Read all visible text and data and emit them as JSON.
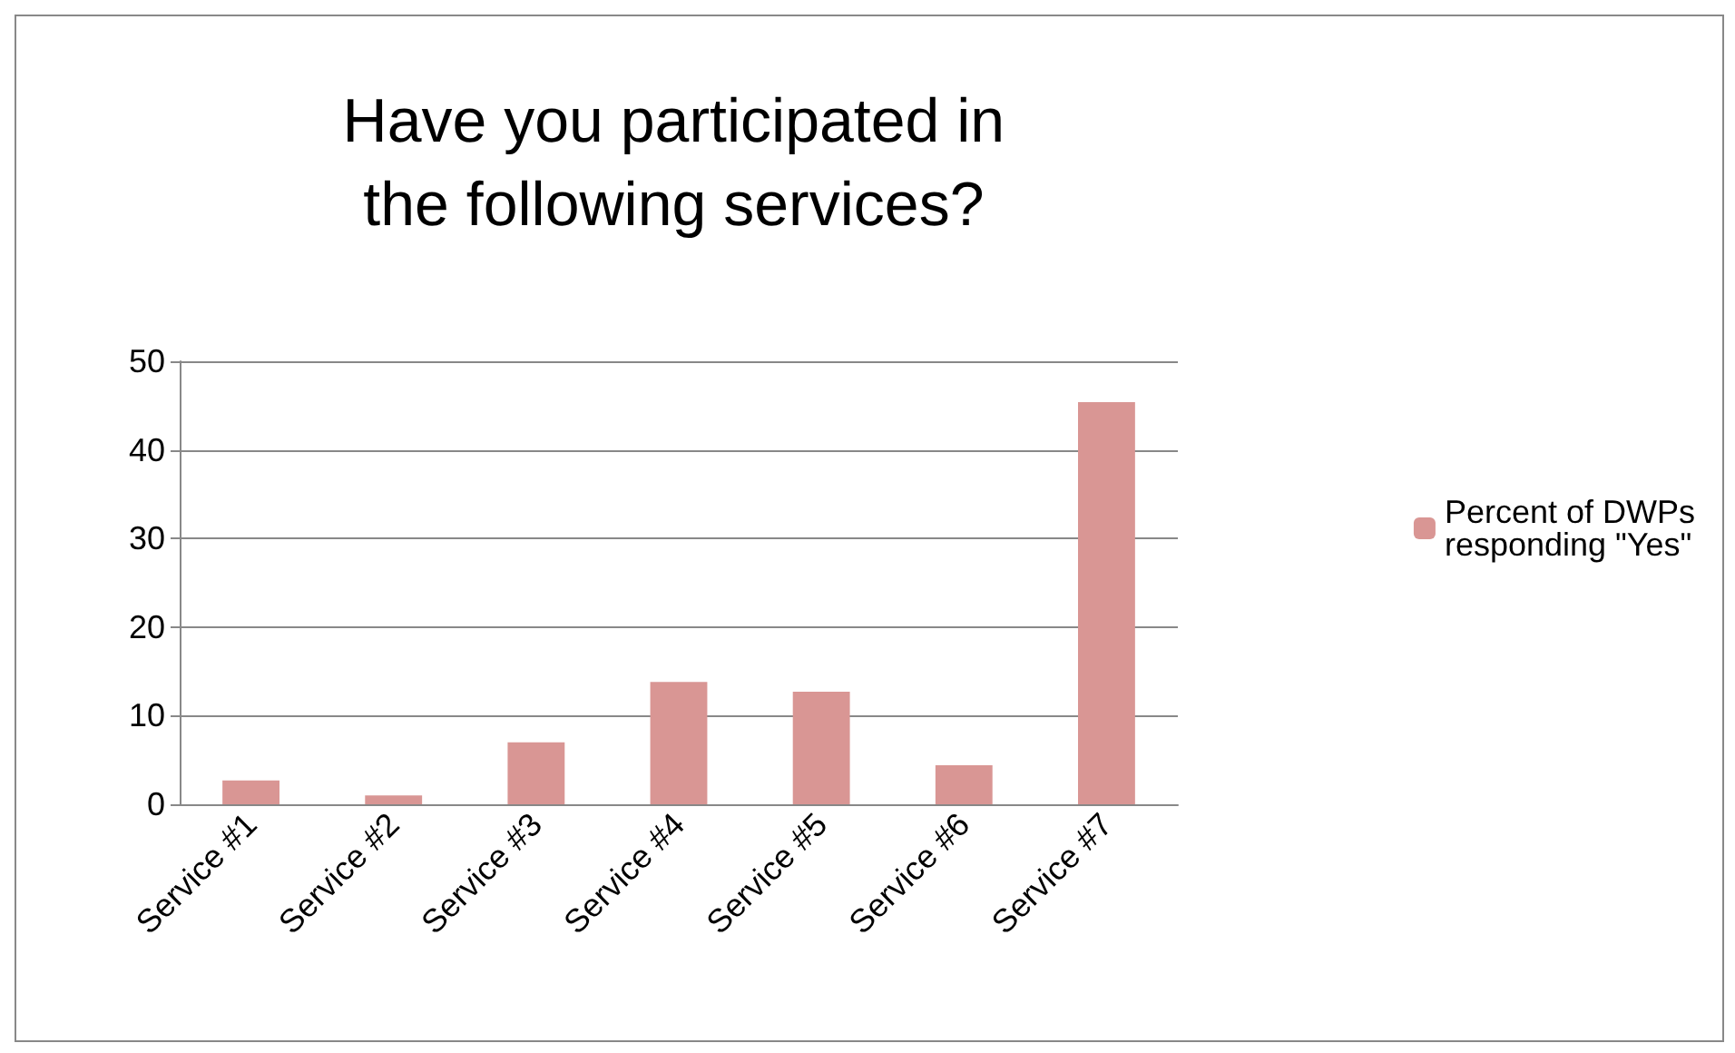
{
  "chart_data": {
    "type": "bar",
    "title": "Have you participated in\nthe following services?",
    "categories": [
      "Service #1",
      "Service #2",
      "Service #3",
      "Service #4",
      "Service #5",
      "Service #6",
      "Service #7"
    ],
    "series": [
      {
        "name": "Percent of DWPs\nresponding \"Yes\"",
        "color": "#d99694",
        "values": [
          2.7,
          1,
          7,
          13.8,
          12.7,
          4.4,
          45.4
        ]
      }
    ],
    "ylim": [
      0,
      50
    ],
    "yticks": [
      0,
      10,
      20,
      30,
      40,
      50
    ],
    "grid": "y",
    "legend": "right"
  }
}
